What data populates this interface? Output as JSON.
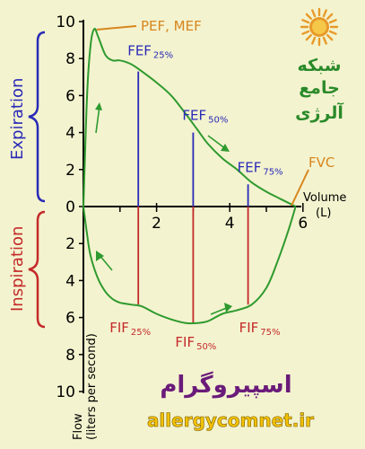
{
  "chart_data": {
    "type": "line",
    "xlabel": "Volume (L)",
    "ylabel": "Flow (liters per second)",
    "xlim": [
      0,
      6
    ],
    "ylim": [
      -10,
      10
    ],
    "x_ticks": [
      "2",
      "4",
      "6"
    ],
    "y_ticks_up": [
      "10",
      "8",
      "6",
      "4",
      "2",
      "0"
    ],
    "y_ticks_down": [
      "2",
      "4",
      "6",
      "8",
      "10"
    ],
    "expiration_curve": {
      "x": [
        0,
        0.1,
        0.2,
        0.3,
        0.4,
        0.6,
        0.8,
        1.0,
        1.3,
        1.6,
        2.0,
        2.4,
        2.8,
        3.1,
        3.4,
        3.8,
        4.2,
        4.6,
        5.0,
        5.4,
        5.8
      ],
      "y": [
        0,
        6.0,
        8.8,
        9.6,
        9.2,
        8.2,
        7.9,
        7.9,
        7.7,
        7.3,
        6.7,
        6.0,
        5.0,
        4.2,
        3.4,
        2.6,
        2.0,
        1.3,
        0.8,
        0.4,
        0
      ]
    },
    "inspiration_curve": {
      "x": [
        0,
        0.1,
        0.2,
        0.4,
        0.6,
        0.8,
        1.0,
        1.3,
        1.6,
        2.0,
        2.4,
        2.8,
        3.1,
        3.4,
        3.8,
        4.2,
        4.6,
        5.0,
        5.3,
        5.6,
        5.8
      ],
      "y": [
        0,
        -1.5,
        -2.7,
        -3.9,
        -4.6,
        -5.0,
        -5.2,
        -5.3,
        -5.4,
        -5.8,
        -6.1,
        -6.3,
        -6.3,
        -6.2,
        -5.8,
        -5.6,
        -5.3,
        -4.4,
        -3.0,
        -1.3,
        0
      ]
    },
    "markers": [
      {
        "name": "FEF",
        "sub": "25%",
        "x": 1.5,
        "y": 7.3,
        "kind": "exp"
      },
      {
        "name": "FEF",
        "sub": "50%",
        "x": 3.0,
        "y": 4.0,
        "kind": "exp"
      },
      {
        "name": "FEF",
        "sub": "75%",
        "x": 4.5,
        "y": 1.2,
        "kind": "exp"
      },
      {
        "name": "FIF",
        "sub": "25%",
        "x": 1.5,
        "y": -5.3,
        "kind": "insp"
      },
      {
        "name": "FIF",
        "sub": "50%",
        "x": 3.0,
        "y": -6.3,
        "kind": "insp"
      },
      {
        "name": "FIF",
        "sub": "75%",
        "x": 4.5,
        "y": -5.3,
        "kind": "insp"
      }
    ],
    "annotations": {
      "pef": "PEF, MEF",
      "fvc": "FVC",
      "expiration": "Expiration",
      "inspiration": "Inspiration"
    },
    "grid": false
  },
  "branding": {
    "line1": "شبکه",
    "line2": "جامع",
    "line3": "آلرژی",
    "title_fa": "اسپیروگرام",
    "url": "allergycomnet.ir"
  },
  "colors": {
    "curve": "#2f9a2f",
    "expiration": "#2a2ab8",
    "inspiration": "#c42a2a",
    "annotation": "#d7861e"
  }
}
